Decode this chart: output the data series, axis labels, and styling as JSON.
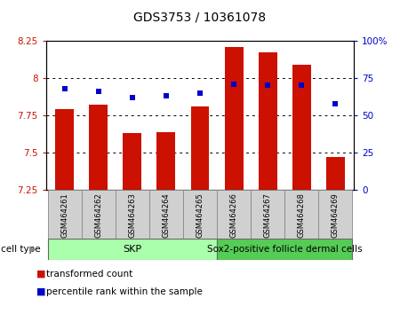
{
  "title": "GDS3753 / 10361078",
  "samples": [
    "GSM464261",
    "GSM464262",
    "GSM464263",
    "GSM464264",
    "GSM464265",
    "GSM464266",
    "GSM464267",
    "GSM464268",
    "GSM464269"
  ],
  "transformed_count": [
    7.79,
    7.82,
    7.63,
    7.64,
    7.81,
    8.21,
    8.17,
    8.09,
    7.47
  ],
  "percentile_rank": [
    68,
    66,
    62,
    63,
    65,
    71,
    70,
    70,
    58
  ],
  "ylim_left": [
    7.25,
    8.25
  ],
  "ylim_right": [
    0,
    100
  ],
  "yticks_left": [
    7.25,
    7.5,
    7.75,
    8.0,
    8.25
  ],
  "yticks_right": [
    0,
    25,
    50,
    75,
    100
  ],
  "ytick_labels_left": [
    "7.25",
    "7.5",
    "7.75",
    "8",
    "8.25"
  ],
  "ytick_labels_right": [
    "0",
    "25",
    "50",
    "75",
    "100%"
  ],
  "bar_color": "#cc1100",
  "dot_color": "#0000cc",
  "bar_width": 0.55,
  "skp_count": 5,
  "cell_types": [
    {
      "label": "SKP",
      "color": "#aaffaa"
    },
    {
      "label": "Sox2-positive follicle dermal cells",
      "color": "#55cc55"
    }
  ],
  "cell_type_label": "cell type",
  "legend_items": [
    {
      "color": "#cc1100",
      "label": "transformed count"
    },
    {
      "color": "#0000cc",
      "label": "percentile rank within the sample"
    }
  ],
  "background_color": "#ffffff",
  "plot_bg_color": "#ffffff",
  "tick_label_color_left": "#cc1100",
  "tick_label_color_right": "#0000cc",
  "sample_box_color": "#d0d0d0",
  "title_fontsize": 10,
  "axis_fontsize": 7.5,
  "sample_fontsize": 6,
  "legend_fontsize": 7.5
}
